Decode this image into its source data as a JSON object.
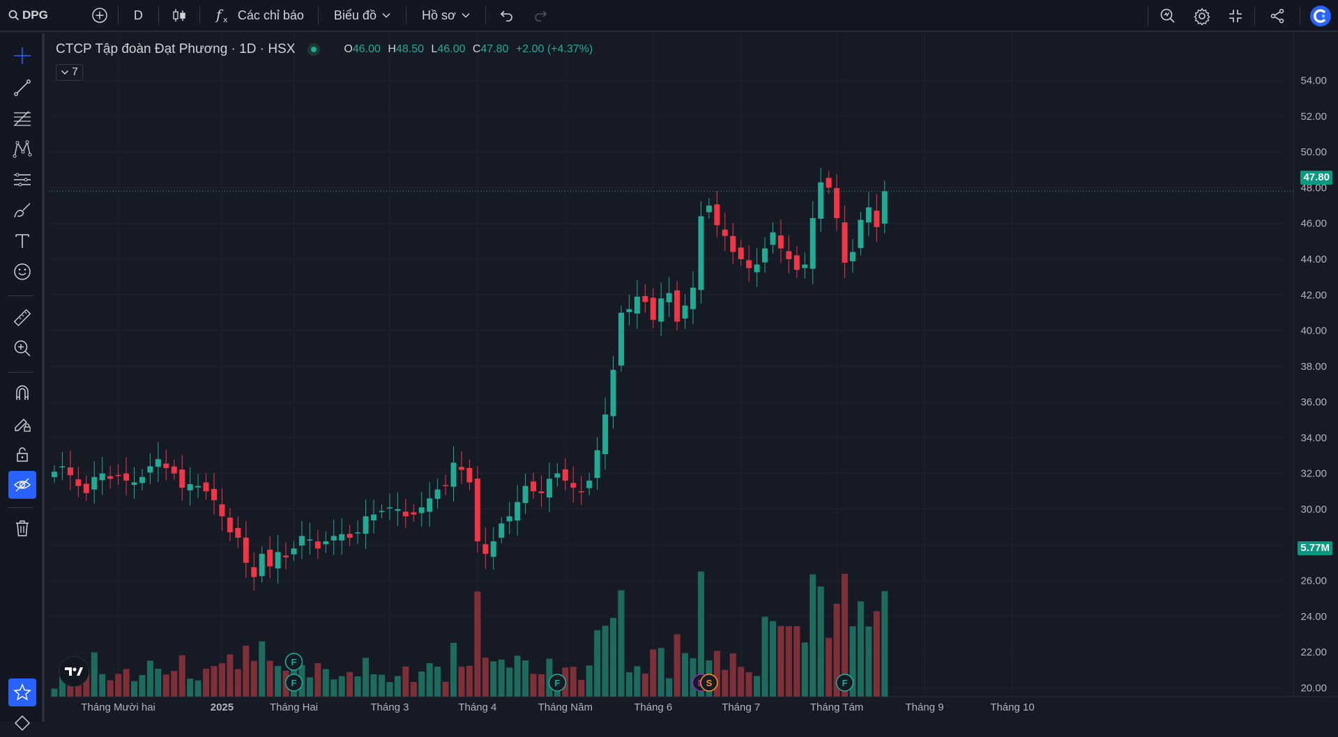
{
  "toolbar": {
    "symbol": "DPG",
    "interval": "D",
    "indicators_label": "Các chỉ báo",
    "chart_menu_label": "Biểu đồ",
    "profile_label": "Hồ sơ"
  },
  "legend": {
    "title": "CTCP Tập đoàn Đạt Phương · 1D · HSX",
    "o_key": "O",
    "o_val": "46.00",
    "h_key": "H",
    "h_val": "48.50",
    "l_key": "L",
    "l_val": "46.00",
    "c_key": "C",
    "c_val": "47.80",
    "change": "+2.00 (+4.37%)",
    "collapse_count": "7"
  },
  "price_tags": {
    "last_price": "47.80",
    "volume": "5.77M"
  },
  "colors": {
    "up": "#22ab94",
    "down": "#f23645",
    "up_vol": "#1d6b5f",
    "down_vol": "#7f2f37",
    "bg": "#161a25",
    "grid": "#1f2430",
    "accent": "#2962ff"
  },
  "icons": {
    "left_tools": [
      "crosshair-icon",
      "trendline-icon",
      "fib-icon",
      "pattern-icon",
      "measure-lines-icon",
      "brush-icon",
      "text-icon",
      "emoji-icon",
      "ruler-icon",
      "zoom-in-icon",
      "magnet-icon",
      "lock-drawing-icon",
      "lock-icon",
      "hide-drawings-icon",
      "trash-icon"
    ],
    "top_right": [
      "quick-search-icon",
      "settings-icon",
      "fullscreen-icon",
      "share-icon",
      "avatar"
    ]
  },
  "chart_data": {
    "type": "candlestick",
    "y_ticks": [
      "54.00",
      "52.00",
      "50.00",
      "48.00",
      "46.00",
      "44.00",
      "42.00",
      "40.00",
      "38.00",
      "36.00",
      "34.00",
      "32.00",
      "30.00",
      "28.00",
      "26.00",
      "24.00",
      "22.00",
      "20.00"
    ],
    "ylim": [
      19.7,
      55
    ],
    "x_ticks": [
      {
        "label": "Tháng Mười hai",
        "bold": false,
        "index": 8
      },
      {
        "label": "2025",
        "bold": true,
        "index": 21
      },
      {
        "label": "Tháng Hai",
        "bold": false,
        "index": 30
      },
      {
        "label": "Tháng 3",
        "bold": false,
        "index": 42
      },
      {
        "label": "Tháng 4",
        "bold": false,
        "index": 53
      },
      {
        "label": "Tháng Năm",
        "bold": false,
        "index": 64
      },
      {
        "label": "Tháng 6",
        "bold": false,
        "index": 75
      },
      {
        "label": "Tháng 7",
        "bold": false,
        "index": 86
      },
      {
        "label": "Tháng Tám",
        "bold": false,
        "index": 98
      },
      {
        "label": "Tháng 9",
        "bold": false,
        "index": 109
      },
      {
        "label": "Tháng 10",
        "bold": false,
        "index": 120
      }
    ],
    "last_index": 104,
    "closes": [
      32.1,
      32.4,
      31.9,
      31.3,
      30.9,
      31.8,
      32.0,
      31.7,
      31.9,
      31.6,
      31.5,
      31.8,
      32.4,
      32.8,
      32.3,
      32.0,
      31.2,
      31.4,
      31.3,
      31.0,
      30.5,
      29.6,
      28.7,
      28.4,
      27.0,
      26.2,
      27.5,
      26.8,
      27.6,
      27.3,
      27.8,
      28.5,
      28.3,
      27.8,
      28.2,
      28.5,
      28.6,
      28.4,
      28.7,
      29.6,
      29.7,
      29.9,
      30.1,
      30.0,
      29.6,
      29.7,
      30.1,
      30.6,
      31.1,
      31.3,
      32.6,
      32.2,
      31.5,
      28.2,
      27.5,
      28.2,
      29.2,
      29.6,
      30.4,
      31.3,
      31.0,
      30.9,
      31.7,
      32.0,
      31.6,
      31.2,
      31.0,
      31.6,
      33.3,
      35.3,
      37.8,
      41.0,
      41.2,
      41.9,
      41.6,
      40.6,
      41.8,
      42.1,
      40.5,
      41.4,
      42.4,
      46.4,
      47.0,
      45.9,
      45.3,
      44.4,
      44.0,
      43.5,
      43.7,
      44.6,
      45.5,
      44.6,
      44.0,
      43.4,
      43.7,
      46.3,
      48.3,
      48.0,
      46.3,
      43.8,
      44.4,
      46.2,
      46.9,
      45.8,
      47.8
    ],
    "volume_scale_max": 8.5,
    "volume_tag": "5.77M",
    "events": [
      {
        "letter": "F",
        "index": 30,
        "row": 1,
        "color": "#22ab94"
      },
      {
        "letter": "F",
        "index": 30,
        "row": 0,
        "color": "#22ab94"
      },
      {
        "letter": "F",
        "index": 63,
        "row": 0,
        "color": "#22ab94"
      },
      {
        "letter": "D",
        "index": 81,
        "row": 0,
        "color": "#9c27b0"
      },
      {
        "letter": "S",
        "index": 82,
        "row": 0,
        "color": "#f7931a"
      },
      {
        "letter": "F",
        "index": 99,
        "row": 0,
        "color": "#22ab94"
      }
    ]
  }
}
